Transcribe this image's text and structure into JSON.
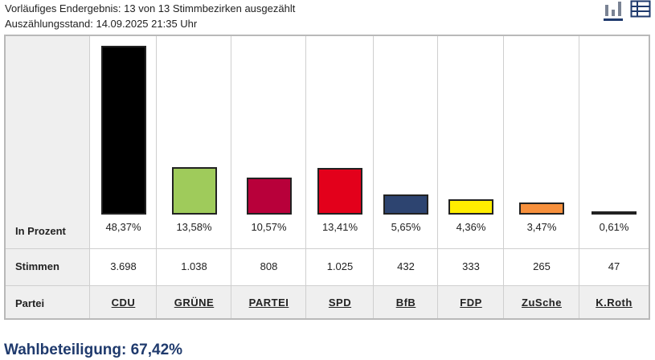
{
  "status": {
    "line1": "Vorläufiges Endergebnis: 13 von 13 Stimmbezirken ausgezählt",
    "line2": "Auszählungsstand: 14.09.2025 21:35 Uhr"
  },
  "view_icons": {
    "chart": "bar-chart-icon",
    "table": "table-icon",
    "active": "chart",
    "active_color": "#1f3a6d"
  },
  "rows": {
    "percent": "In Prozent",
    "votes": "Stimmen",
    "party": "Partei"
  },
  "chart_data": {
    "type": "bar",
    "categories": [
      "CDU",
      "GRÜNE",
      "PARTEI",
      "SPD",
      "BfB",
      "FDP",
      "ZuSche",
      "K.Roth"
    ],
    "values": [
      48.37,
      13.58,
      10.57,
      13.41,
      5.65,
      4.36,
      3.47,
      0.61
    ],
    "value_labels": [
      "48,37%",
      "13,58%",
      "10,57%",
      "13,41%",
      "5,65%",
      "4,36%",
      "3,47%",
      "0,61%"
    ],
    "votes": [
      "3.698",
      "1.038",
      "808",
      "1.025",
      "432",
      "333",
      "265",
      "47"
    ],
    "colors": [
      "#000000",
      "#9fcb5b",
      "#b8003a",
      "#e3001b",
      "#2d4470",
      "#ffed00",
      "#f7903c",
      "#111111"
    ],
    "ylim": [
      0,
      48.37
    ],
    "grid": false
  },
  "turnout": "Wahlbeteiligung: 67,42%"
}
